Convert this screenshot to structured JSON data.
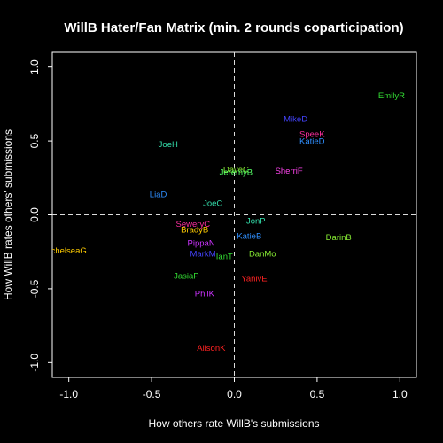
{
  "chart_data": {
    "type": "scatter",
    "title": "WillB Hater/Fan Matrix (min. 2 rounds coparticipation)",
    "xlabel": "How others rate WillB's submissions",
    "ylabel": "How WillB rates others' submissions",
    "xlim": [
      -1.1,
      1.1
    ],
    "ylim": [
      -1.1,
      1.1
    ],
    "x_ticks": [
      {
        "value": -1.0,
        "label": "-1.0"
      },
      {
        "value": -0.5,
        "label": "-0.5"
      },
      {
        "value": 0.0,
        "label": "0.0"
      },
      {
        "value": 0.5,
        "label": "0.5"
      },
      {
        "value": 1.0,
        "label": "1.0"
      }
    ],
    "y_ticks": [
      {
        "value": -1.0,
        "label": "-1.0"
      },
      {
        "value": -0.5,
        "label": "-0.5"
      },
      {
        "value": 0.0,
        "label": "0.0"
      },
      {
        "value": 0.5,
        "label": "0.5"
      },
      {
        "value": 1.0,
        "label": "1.0"
      }
    ],
    "reference_lines": {
      "x": 0,
      "y": 0,
      "style": "dashed"
    },
    "points": [
      {
        "label": "EmilyR",
        "x": 0.95,
        "y": 0.81,
        "color": "#33dd33"
      },
      {
        "label": "MikeD",
        "x": 0.37,
        "y": 0.65,
        "color": "#4444ff"
      },
      {
        "label": "SpeeK",
        "x": 0.47,
        "y": 0.55,
        "color": "#ff2fa0"
      },
      {
        "label": "KatieD",
        "x": 0.47,
        "y": 0.5,
        "color": "#2f8fff"
      },
      {
        "label": "JoeH",
        "x": -0.4,
        "y": 0.48,
        "color": "#33ddaa"
      },
      {
        "label": "DaveC",
        "x": 0.01,
        "y": 0.31,
        "color": "#88ee33"
      },
      {
        "label": "SherriF",
        "x": 0.33,
        "y": 0.3,
        "color": "#ff44ee"
      },
      {
        "label": "JeremyB",
        "x": 0.01,
        "y": 0.29,
        "color": "#55ff66"
      },
      {
        "label": "LiaD",
        "x": -0.46,
        "y": 0.14,
        "color": "#2f8fff"
      },
      {
        "label": "JoeC",
        "x": -0.13,
        "y": 0.08,
        "color": "#33ddaa"
      },
      {
        "label": "JonP",
        "x": 0.13,
        "y": -0.04,
        "color": "#33ddaa"
      },
      {
        "label": "SeweryC",
        "x": -0.25,
        "y": -0.06,
        "color": "#ff2fa0"
      },
      {
        "label": "BradyB",
        "x": -0.24,
        "y": -0.1,
        "color": "#ffcc00"
      },
      {
        "label": "KatieB",
        "x": 0.09,
        "y": -0.14,
        "color": "#2f8fff"
      },
      {
        "label": "DarinB",
        "x": 0.63,
        "y": -0.15,
        "color": "#88ee33"
      },
      {
        "label": "PippaN",
        "x": -0.2,
        "y": -0.19,
        "color": "#cc33ff"
      },
      {
        "label": "chelseaG",
        "x": -1.0,
        "y": -0.24,
        "color": "#ffcc00"
      },
      {
        "label": "MarkM",
        "x": -0.19,
        "y": -0.26,
        "color": "#4444ff"
      },
      {
        "label": "DanMo",
        "x": 0.17,
        "y": -0.26,
        "color": "#88ee33"
      },
      {
        "label": "IanT",
        "x": -0.06,
        "y": -0.28,
        "color": "#33dd33"
      },
      {
        "label": "JasiaP",
        "x": -0.29,
        "y": -0.41,
        "color": "#33dd33"
      },
      {
        "label": "YanivE",
        "x": 0.12,
        "y": -0.43,
        "color": "#ff2222"
      },
      {
        "label": "PhilK",
        "x": -0.18,
        "y": -0.53,
        "color": "#cc33ff"
      },
      {
        "label": "AlisonK",
        "x": -0.14,
        "y": -0.9,
        "color": "#ff2222"
      }
    ]
  }
}
